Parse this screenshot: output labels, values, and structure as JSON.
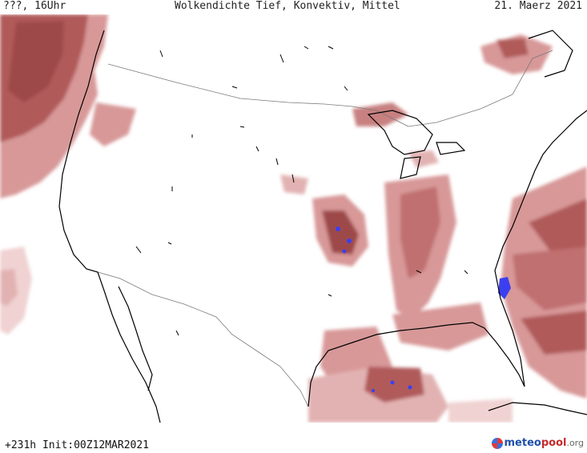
{
  "header": {
    "valid_label": "???, 16Uhr",
    "title": "Wolkendichte   Tief, Konvektiv, Mittel",
    "date": "21. Maerz 2021"
  },
  "footer": {
    "lead_init": "+231h Init:00Z12MAR2021",
    "logo_main": "meteo",
    "logo_accent": "pool",
    "logo_tld": ".org"
  },
  "map": {
    "region": "North America / Continental United States",
    "colors": {
      "cloud_light": "#f0d2d2",
      "cloud_mid": "#d89898",
      "cloud_dark": "#9e4848",
      "convective": "#3b3ff0",
      "coast": "#000000",
      "border": "#7a7a7a",
      "background": "#ffffff"
    },
    "icons": [
      "meteopool-logo-icon"
    ]
  }
}
